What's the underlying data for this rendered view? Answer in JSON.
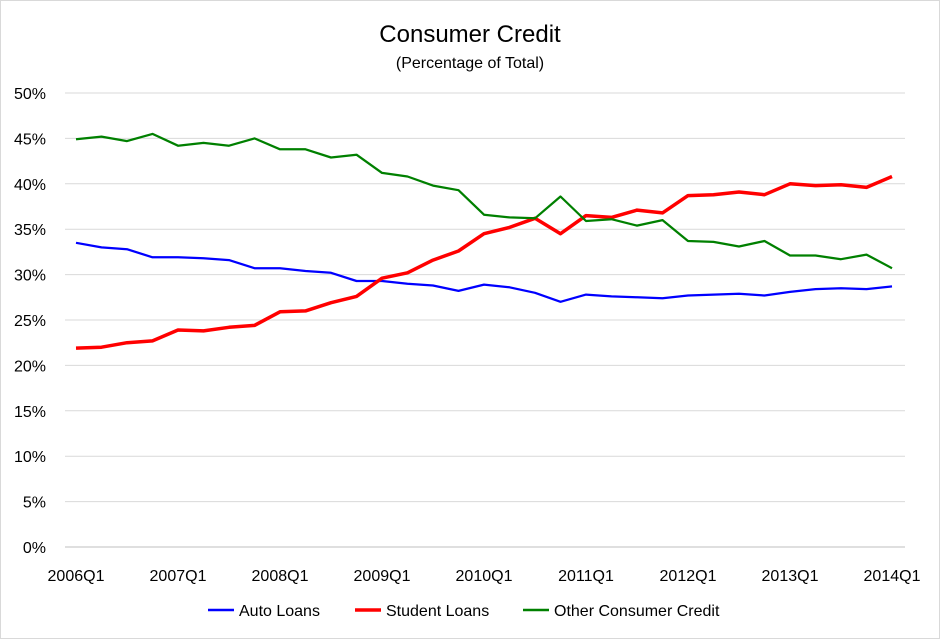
{
  "chart_data": {
    "type": "line",
    "title": "Consumer Credit",
    "subtitle": "(Percentage of Total)",
    "xlabel": "",
    "ylabel": "",
    "ylim": [
      0,
      50
    ],
    "yticks": [
      "0%",
      "5%",
      "10%",
      "15%",
      "20%",
      "25%",
      "30%",
      "35%",
      "40%",
      "45%",
      "50%"
    ],
    "xtick_labels": [
      "2006Q1",
      "2007Q1",
      "2008Q1",
      "2009Q1",
      "2010Q1",
      "2011Q1",
      "2012Q1",
      "2013Q1",
      "2014Q1"
    ],
    "x": [
      "2006Q1",
      "2006Q2",
      "2006Q3",
      "2006Q4",
      "2007Q1",
      "2007Q2",
      "2007Q3",
      "2007Q4",
      "2008Q1",
      "2008Q2",
      "2008Q3",
      "2008Q4",
      "2009Q1",
      "2009Q2",
      "2009Q3",
      "2009Q4",
      "2010Q1",
      "2010Q2",
      "2010Q3",
      "2010Q4",
      "2011Q1",
      "2011Q2",
      "2011Q3",
      "2011Q4",
      "2012Q1",
      "2012Q2",
      "2012Q3",
      "2012Q4",
      "2013Q1",
      "2013Q2",
      "2013Q3",
      "2013Q4",
      "2014Q1"
    ],
    "grid": true,
    "legend_position": "bottom",
    "series": [
      {
        "name": "Auto Loans",
        "color": "#0000ff",
        "values": [
          33.5,
          33.0,
          32.8,
          31.9,
          31.9,
          31.8,
          31.6,
          30.7,
          30.7,
          30.4,
          30.2,
          29.3,
          29.3,
          29.0,
          28.8,
          28.2,
          28.9,
          28.6,
          28.0,
          27.0,
          27.8,
          27.6,
          27.5,
          27.4,
          27.7,
          27.8,
          27.9,
          27.7,
          28.1,
          28.4,
          28.5,
          28.4,
          28.7
        ]
      },
      {
        "name": "Student Loans",
        "color": "#ff0000",
        "values": [
          21.9,
          22.0,
          22.5,
          22.7,
          23.9,
          23.8,
          24.2,
          24.4,
          25.9,
          26.0,
          26.9,
          27.6,
          29.6,
          30.2,
          31.6,
          32.6,
          34.5,
          35.2,
          36.2,
          34.5,
          36.5,
          36.3,
          37.1,
          36.8,
          38.7,
          38.8,
          39.1,
          38.8,
          40.0,
          39.8,
          39.9,
          39.6,
          40.8
        ]
      },
      {
        "name": "Other Consumer Credit",
        "color": "#008000",
        "values": [
          44.9,
          45.2,
          44.7,
          45.5,
          44.2,
          44.5,
          44.2,
          45.0,
          43.8,
          43.8,
          42.9,
          43.2,
          41.2,
          40.8,
          39.8,
          39.3,
          36.6,
          36.3,
          36.2,
          38.6,
          35.9,
          36.1,
          35.4,
          36.0,
          33.7,
          33.6,
          33.1,
          33.7,
          32.1,
          32.1,
          31.7,
          32.2,
          30.7
        ]
      }
    ]
  }
}
